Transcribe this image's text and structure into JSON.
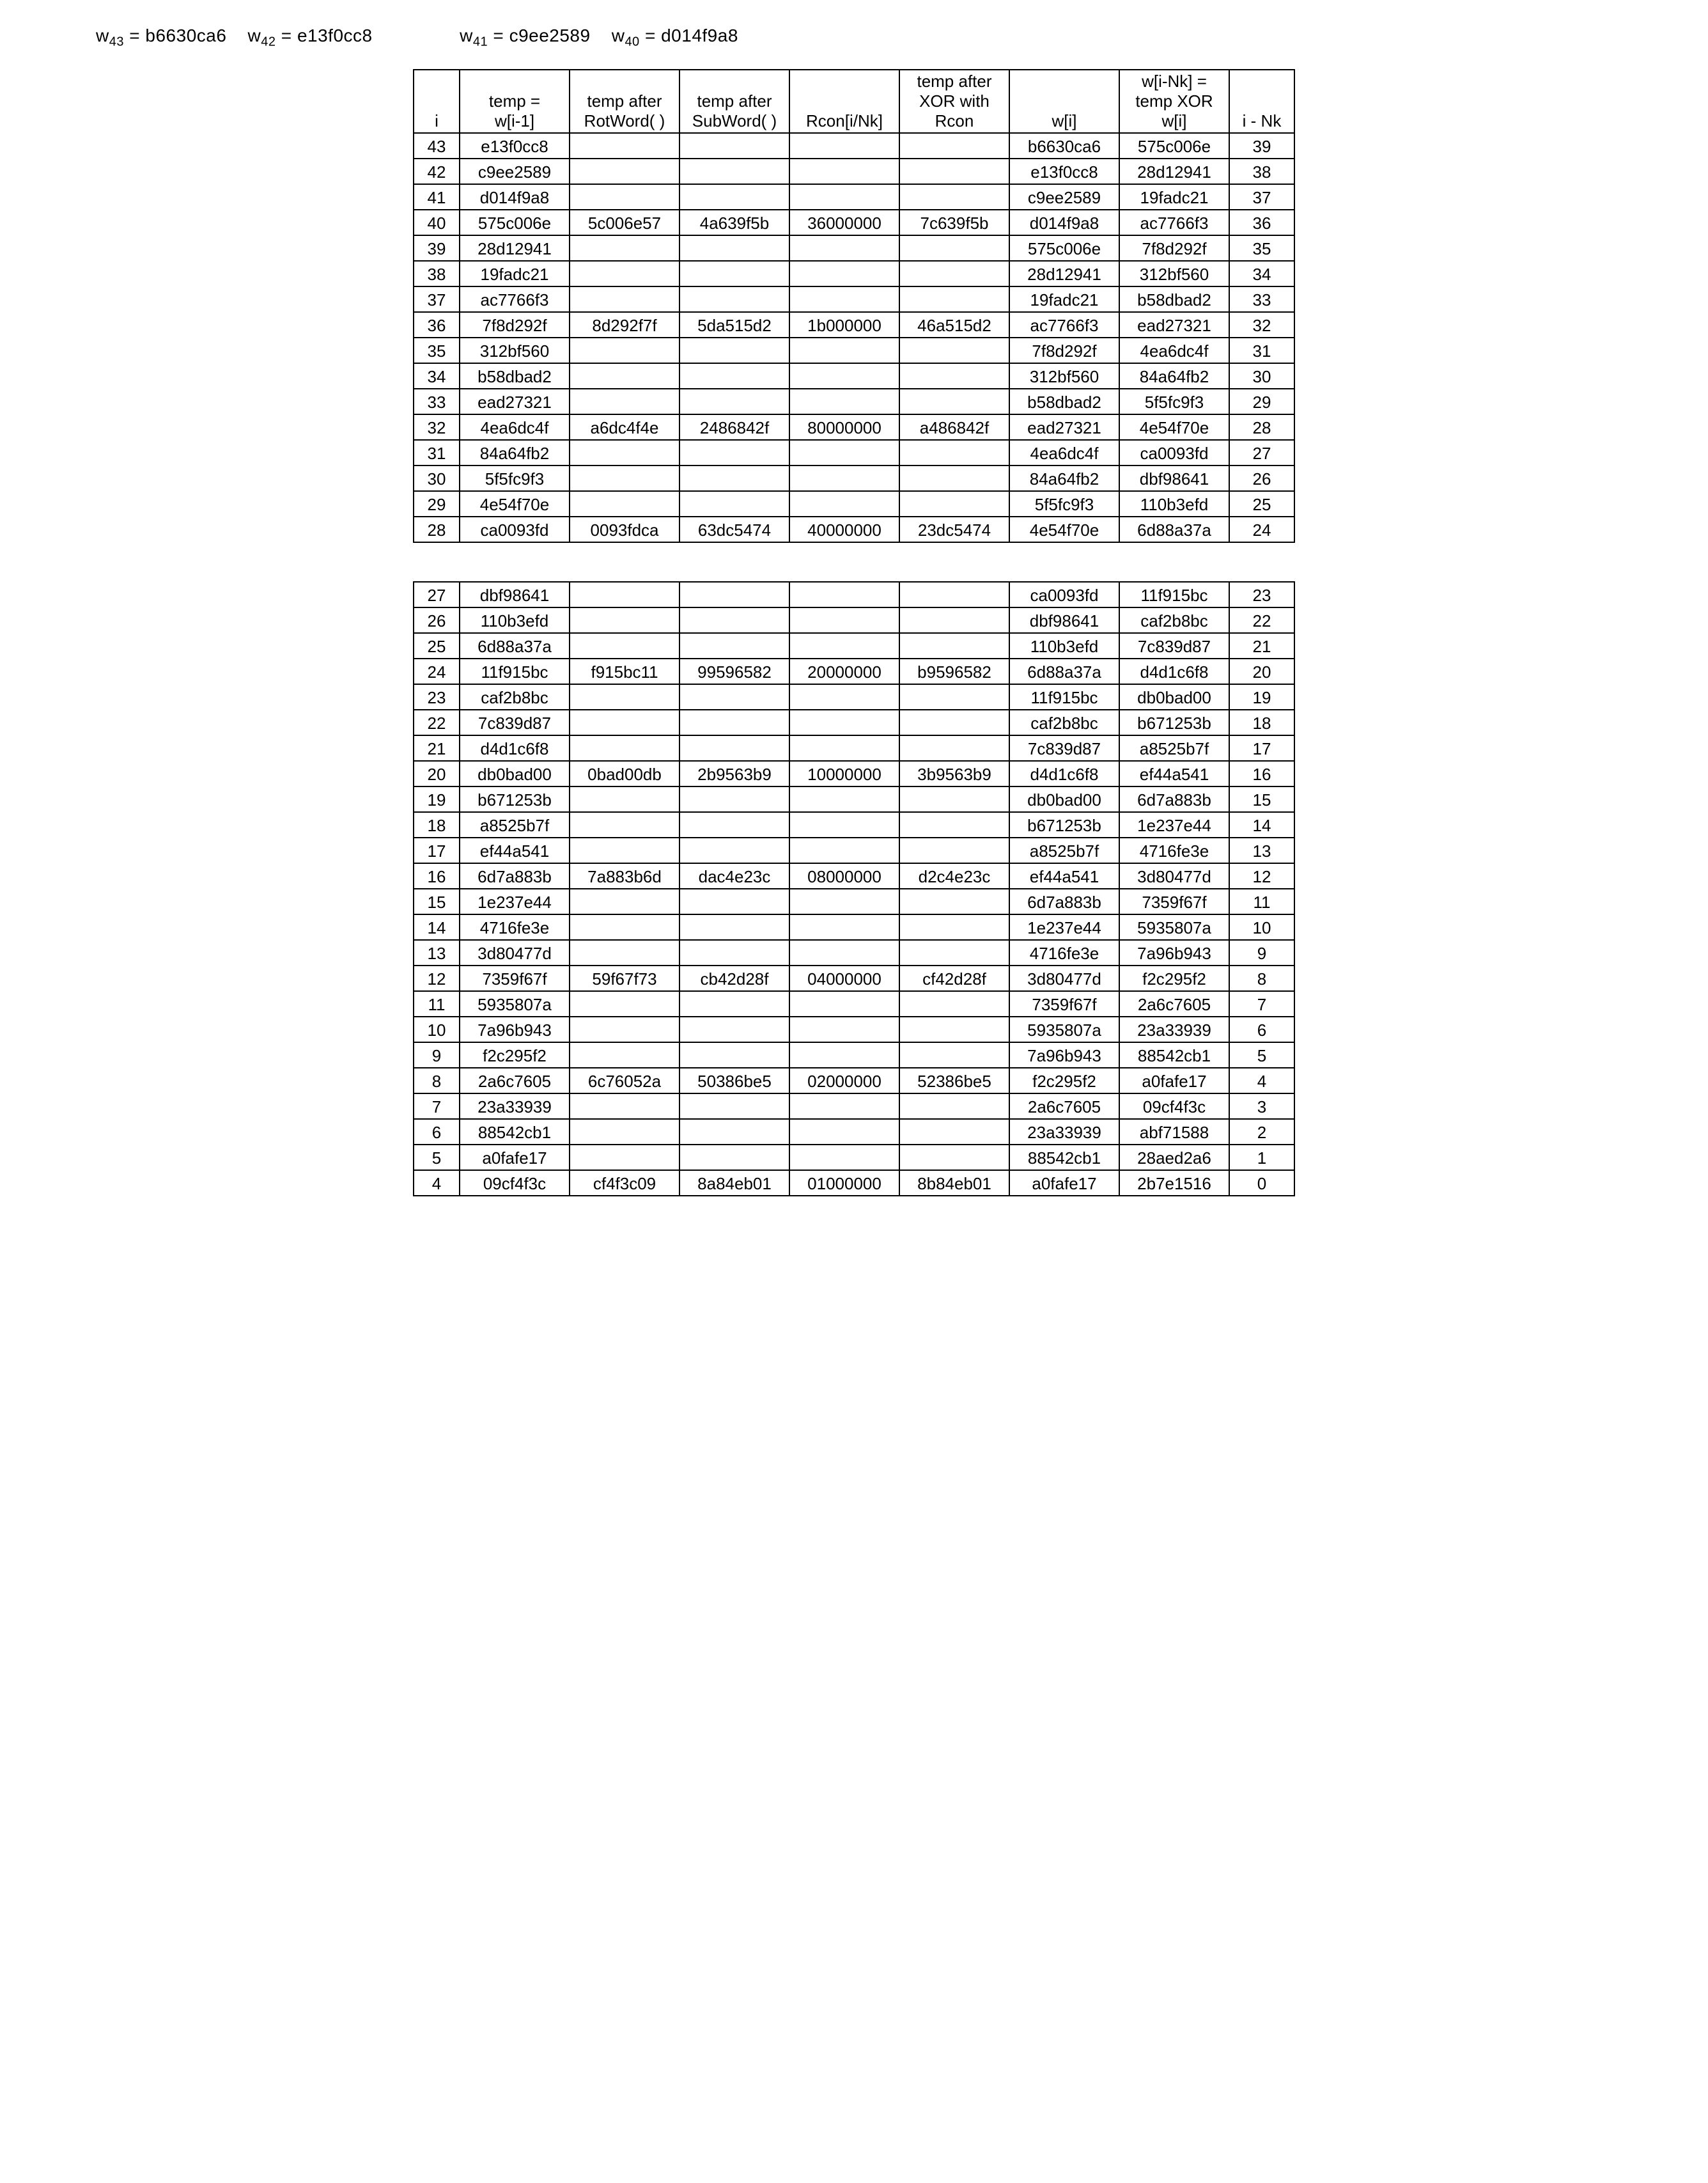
{
  "header": {
    "w43_label": "w",
    "w43_sub": "43",
    "w43_val": "b6630ca6",
    "w42_label": "w",
    "w42_sub": "42",
    "w42_val": "e13f0cc8",
    "w41_label": "w",
    "w41_sub": "41",
    "w41_val": "c9ee2589",
    "w40_label": "w",
    "w40_sub": "40",
    "w40_val": "d014f9a8"
  },
  "columns": {
    "c0": "i",
    "c1_l1": "temp =",
    "c1_l2": "w[i-1]",
    "c2_l1": "temp after",
    "c2_l2": "RotWord( )",
    "c3_l1": "temp after",
    "c3_l2": "SubWord( )",
    "c4": "Rcon[i/Nk]",
    "c5_l1": "temp after",
    "c5_l2": "XOR with",
    "c5_l3": "Rcon",
    "c6": "w[i]",
    "c7_l1": "w[i-Nk] =",
    "c7_l2": "temp XOR",
    "c7_l3": "w[i]",
    "c8": "i - Nk"
  },
  "rows1": [
    {
      "i": "43",
      "temp": "e13f0cc8",
      "rot": "",
      "sub": "",
      "rcon": "",
      "xor": "",
      "wi": "b6630ca6",
      "wnk": "575c006e",
      "ink": "39"
    },
    {
      "i": "42",
      "temp": "c9ee2589",
      "rot": "",
      "sub": "",
      "rcon": "",
      "xor": "",
      "wi": "e13f0cc8",
      "wnk": "28d12941",
      "ink": "38"
    },
    {
      "i": "41",
      "temp": "d014f9a8",
      "rot": "",
      "sub": "",
      "rcon": "",
      "xor": "",
      "wi": "c9ee2589",
      "wnk": "19fadc21",
      "ink": "37"
    },
    {
      "i": "40",
      "temp": "575c006e",
      "rot": "5c006e57",
      "sub": "4a639f5b",
      "rcon": "36000000",
      "xor": "7c639f5b",
      "wi": "d014f9a8",
      "wnk": "ac7766f3",
      "ink": "36"
    },
    {
      "i": "39",
      "temp": "28d12941",
      "rot": "",
      "sub": "",
      "rcon": "",
      "xor": "",
      "wi": "575c006e",
      "wnk": "7f8d292f",
      "ink": "35"
    },
    {
      "i": "38",
      "temp": "19fadc21",
      "rot": "",
      "sub": "",
      "rcon": "",
      "xor": "",
      "wi": "28d12941",
      "wnk": "312bf560",
      "ink": "34"
    },
    {
      "i": "37",
      "temp": "ac7766f3",
      "rot": "",
      "sub": "",
      "rcon": "",
      "xor": "",
      "wi": "19fadc21",
      "wnk": "b58dbad2",
      "ink": "33"
    },
    {
      "i": "36",
      "temp": "7f8d292f",
      "rot": "8d292f7f",
      "sub": "5da515d2",
      "rcon": "1b000000",
      "xor": "46a515d2",
      "wi": "ac7766f3",
      "wnk": "ead27321",
      "ink": "32"
    },
    {
      "i": "35",
      "temp": "312bf560",
      "rot": "",
      "sub": "",
      "rcon": "",
      "xor": "",
      "wi": "7f8d292f",
      "wnk": "4ea6dc4f",
      "ink": "31"
    },
    {
      "i": "34",
      "temp": "b58dbad2",
      "rot": "",
      "sub": "",
      "rcon": "",
      "xor": "",
      "wi": "312bf560",
      "wnk": "84a64fb2",
      "ink": "30"
    },
    {
      "i": "33",
      "temp": "ead27321",
      "rot": "",
      "sub": "",
      "rcon": "",
      "xor": "",
      "wi": "b58dbad2",
      "wnk": "5f5fc9f3",
      "ink": "29"
    },
    {
      "i": "32",
      "temp": "4ea6dc4f",
      "rot": "a6dc4f4e",
      "sub": "2486842f",
      "rcon": "80000000",
      "xor": "a486842f",
      "wi": "ead27321",
      "wnk": "4e54f70e",
      "ink": "28"
    },
    {
      "i": "31",
      "temp": "84a64fb2",
      "rot": "",
      "sub": "",
      "rcon": "",
      "xor": "",
      "wi": "4ea6dc4f",
      "wnk": "ca0093fd",
      "ink": "27"
    },
    {
      "i": "30",
      "temp": "5f5fc9f3",
      "rot": "",
      "sub": "",
      "rcon": "",
      "xor": "",
      "wi": "84a64fb2",
      "wnk": "dbf98641",
      "ink": "26"
    },
    {
      "i": "29",
      "temp": "4e54f70e",
      "rot": "",
      "sub": "",
      "rcon": "",
      "xor": "",
      "wi": "5f5fc9f3",
      "wnk": "110b3efd",
      "ink": "25"
    },
    {
      "i": "28",
      "temp": "ca0093fd",
      "rot": "0093fdca",
      "sub": "63dc5474",
      "rcon": "40000000",
      "xor": "23dc5474",
      "wi": "4e54f70e",
      "wnk": "6d88a37a",
      "ink": "24"
    }
  ],
  "rows2": [
    {
      "i": "27",
      "temp": "dbf98641",
      "rot": "",
      "sub": "",
      "rcon": "",
      "xor": "",
      "wi": "ca0093fd",
      "wnk": "11f915bc",
      "ink": "23"
    },
    {
      "i": "26",
      "temp": "110b3efd",
      "rot": "",
      "sub": "",
      "rcon": "",
      "xor": "",
      "wi": "dbf98641",
      "wnk": "caf2b8bc",
      "ink": "22"
    },
    {
      "i": "25",
      "temp": "6d88a37a",
      "rot": "",
      "sub": "",
      "rcon": "",
      "xor": "",
      "wi": "110b3efd",
      "wnk": "7c839d87",
      "ink": "21"
    },
    {
      "i": "24",
      "temp": "11f915bc",
      "rot": "f915bc11",
      "sub": "99596582",
      "rcon": "20000000",
      "xor": "b9596582",
      "wi": "6d88a37a",
      "wnk": "d4d1c6f8",
      "ink": "20"
    },
    {
      "i": "23",
      "temp": "caf2b8bc",
      "rot": "",
      "sub": "",
      "rcon": "",
      "xor": "",
      "wi": "11f915bc",
      "wnk": "db0bad00",
      "ink": "19"
    },
    {
      "i": "22",
      "temp": "7c839d87",
      "rot": "",
      "sub": "",
      "rcon": "",
      "xor": "",
      "wi": "caf2b8bc",
      "wnk": "b671253b",
      "ink": "18"
    },
    {
      "i": "21",
      "temp": "d4d1c6f8",
      "rot": "",
      "sub": "",
      "rcon": "",
      "xor": "",
      "wi": "7c839d87",
      "wnk": "a8525b7f",
      "ink": "17"
    },
    {
      "i": "20",
      "temp": "db0bad00",
      "rot": "0bad00db",
      "sub": "2b9563b9",
      "rcon": "10000000",
      "xor": "3b9563b9",
      "wi": "d4d1c6f8",
      "wnk": "ef44a541",
      "ink": "16"
    },
    {
      "i": "19",
      "temp": "b671253b",
      "rot": "",
      "sub": "",
      "rcon": "",
      "xor": "",
      "wi": "db0bad00",
      "wnk": "6d7a883b",
      "ink": "15"
    },
    {
      "i": "18",
      "temp": "a8525b7f",
      "rot": "",
      "sub": "",
      "rcon": "",
      "xor": "",
      "wi": "b671253b",
      "wnk": "1e237e44",
      "ink": "14"
    },
    {
      "i": "17",
      "temp": "ef44a541",
      "rot": "",
      "sub": "",
      "rcon": "",
      "xor": "",
      "wi": "a8525b7f",
      "wnk": "4716fe3e",
      "ink": "13"
    },
    {
      "i": "16",
      "temp": "6d7a883b",
      "rot": "7a883b6d",
      "sub": "dac4e23c",
      "rcon": "08000000",
      "xor": "d2c4e23c",
      "wi": "ef44a541",
      "wnk": "3d80477d",
      "ink": "12"
    },
    {
      "i": "15",
      "temp": "1e237e44",
      "rot": "",
      "sub": "",
      "rcon": "",
      "xor": "",
      "wi": "6d7a883b",
      "wnk": "7359f67f",
      "ink": "11"
    },
    {
      "i": "14",
      "temp": "4716fe3e",
      "rot": "",
      "sub": "",
      "rcon": "",
      "xor": "",
      "wi": "1e237e44",
      "wnk": "5935807a",
      "ink": "10"
    },
    {
      "i": "13",
      "temp": "3d80477d",
      "rot": "",
      "sub": "",
      "rcon": "",
      "xor": "",
      "wi": "4716fe3e",
      "wnk": "7a96b943",
      "ink": "9"
    },
    {
      "i": "12",
      "temp": "7359f67f",
      "rot": "59f67f73",
      "sub": "cb42d28f",
      "rcon": "04000000",
      "xor": "cf42d28f",
      "wi": "3d80477d",
      "wnk": "f2c295f2",
      "ink": "8"
    },
    {
      "i": "11",
      "temp": "5935807a",
      "rot": "",
      "sub": "",
      "rcon": "",
      "xor": "",
      "wi": "7359f67f",
      "wnk": "2a6c7605",
      "ink": "7"
    },
    {
      "i": "10",
      "temp": "7a96b943",
      "rot": "",
      "sub": "",
      "rcon": "",
      "xor": "",
      "wi": "5935807a",
      "wnk": "23a33939",
      "ink": "6"
    },
    {
      "i": "9",
      "temp": "f2c295f2",
      "rot": "",
      "sub": "",
      "rcon": "",
      "xor": "",
      "wi": "7a96b943",
      "wnk": "88542cb1",
      "ink": "5"
    },
    {
      "i": "8",
      "temp": "2a6c7605",
      "rot": "6c76052a",
      "sub": "50386be5",
      "rcon": "02000000",
      "xor": "52386be5",
      "wi": "f2c295f2",
      "wnk": "a0fafe17",
      "ink": "4"
    },
    {
      "i": "7",
      "temp": "23a33939",
      "rot": "",
      "sub": "",
      "rcon": "",
      "xor": "",
      "wi": "2a6c7605",
      "wnk": "09cf4f3c",
      "ink": "3"
    },
    {
      "i": "6",
      "temp": "88542cb1",
      "rot": "",
      "sub": "",
      "rcon": "",
      "xor": "",
      "wi": "23a33939",
      "wnk": "abf71588",
      "ink": "2"
    },
    {
      "i": "5",
      "temp": "a0fafe17",
      "rot": "",
      "sub": "",
      "rcon": "",
      "xor": "",
      "wi": "88542cb1",
      "wnk": "28aed2a6",
      "ink": "1"
    },
    {
      "i": "4",
      "temp": "09cf4f3c",
      "rot": "cf4f3c09",
      "sub": "8a84eb01",
      "rcon": "01000000",
      "xor": "8b84eb01",
      "wi": "a0fafe17",
      "wnk": "2b7e1516",
      "ink": "0"
    }
  ]
}
